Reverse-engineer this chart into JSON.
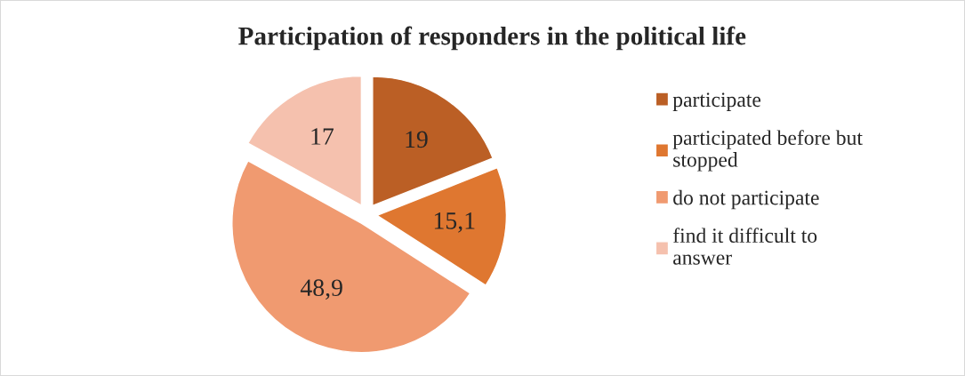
{
  "chart_data": {
    "type": "pie",
    "title": "Participation of responders in the political life",
    "categories": [
      "participate",
      "participated before but stopped",
      "do not participate",
      "find it difficult to answer"
    ],
    "values": [
      19,
      15.1,
      48.9,
      17
    ],
    "value_labels": [
      "19",
      "15,1",
      "48,9",
      "17"
    ],
    "colors": [
      "#bb5f25",
      "#df7730",
      "#f09a70",
      "#f5c1ae"
    ],
    "legend": "right"
  }
}
